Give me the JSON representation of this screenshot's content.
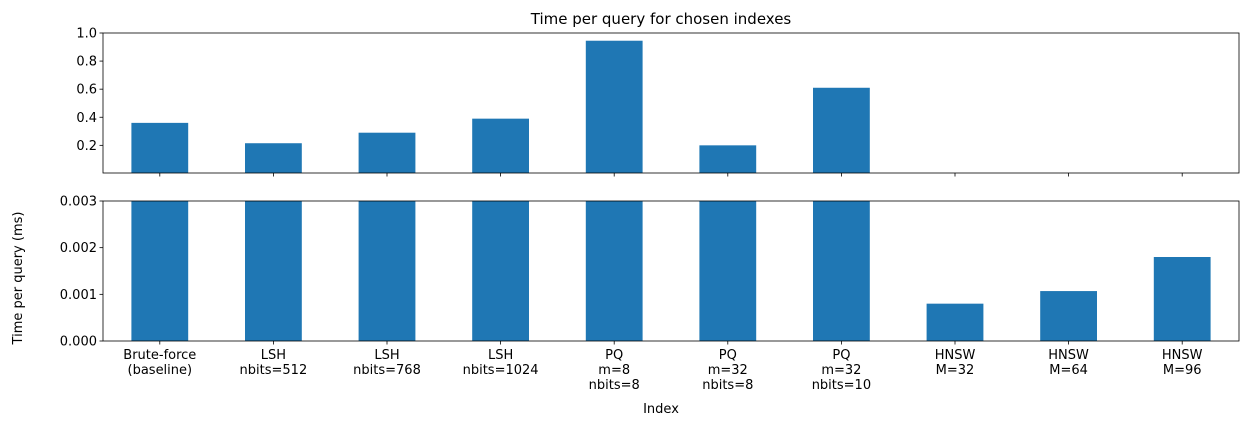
{
  "chart_data": {
    "type": "bar",
    "title": "Time per query for chosen indexes",
    "xlabel": "Index",
    "ylabel": "Time per query (ms)",
    "categories": [
      [
        "Brute-force",
        "(baseline)"
      ],
      [
        "LSH",
        "nbits=512"
      ],
      [
        "LSH",
        "nbits=768"
      ],
      [
        "LSH",
        "nbits=1024"
      ],
      [
        "PQ",
        "m=8",
        "nbits=8"
      ],
      [
        "PQ",
        "m=32",
        "nbits=8"
      ],
      [
        "PQ",
        "m=32",
        "nbits=10"
      ],
      [
        "HNSW",
        "M=32"
      ],
      [
        "HNSW",
        "M=64"
      ],
      [
        "HNSW",
        "M=96"
      ]
    ],
    "values": [
      0.36,
      0.215,
      0.29,
      0.39,
      0.945,
      0.2,
      0.61,
      0.0008,
      0.00107,
      0.0018
    ],
    "color": "#1f77b4",
    "broken_axis": true,
    "upper_panel": {
      "ylim": [
        0.003,
        1.0
      ],
      "yticks": [
        0.2,
        0.4,
        0.6,
        0.8,
        1.0
      ],
      "ytick_labels": [
        "0.2",
        "0.4",
        "0.6",
        "0.8",
        "1.0"
      ]
    },
    "lower_panel": {
      "ylim": [
        0,
        0.003
      ],
      "yticks": [
        0,
        0.001,
        0.002,
        0.003
      ],
      "ytick_labels": [
        "0.000",
        "0.001",
        "0.002",
        "0.003"
      ]
    },
    "grid": false
  }
}
